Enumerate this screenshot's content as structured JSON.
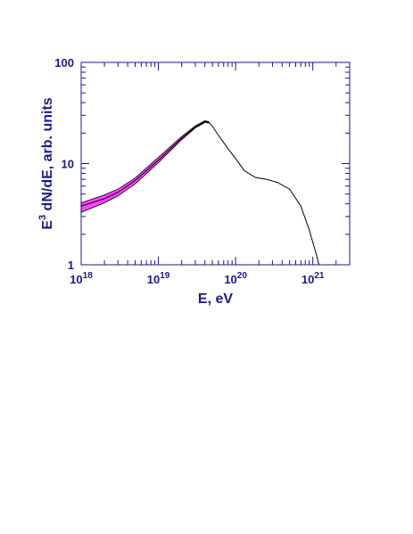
{
  "chart_data": {
    "type": "line",
    "xlabel": "E, eV",
    "ylabel_base": "E",
    "ylabel_exp": "3",
    "ylabel_rest": " dN/dE,  arb. units",
    "x_scale": "log",
    "y_scale": "log",
    "xlim": [
      1e+18,
      3e+21
    ],
    "ylim": [
      1,
      100
    ],
    "x_ticks": [
      {
        "value": 1e+18,
        "base": "10",
        "exp": "18"
      },
      {
        "value": 1e+19,
        "base": "10",
        "exp": "19"
      },
      {
        "value": 1e+20,
        "base": "10",
        "exp": "20"
      },
      {
        "value": 1e+21,
        "base": "10",
        "exp": "21"
      }
    ],
    "y_ticks": [
      {
        "value": 1,
        "label": "1"
      },
      {
        "value": 10,
        "label": "10"
      },
      {
        "value": 100,
        "label": "100"
      }
    ],
    "band": {
      "name": "",
      "color": "#ff44ff",
      "x": [
        1e+18,
        2e+18,
        3e+18,
        5e+18,
        1e+19,
        2e+19,
        3e+19,
        4e+19,
        4.5e+19
      ],
      "upper": [
        4.1,
        4.9,
        5.6,
        7.2,
        11.5,
        18.5,
        23.5,
        26.5,
        26
      ],
      "lower": [
        3.3,
        4.1,
        4.8,
        6.3,
        10.2,
        17.2,
        22.5,
        25.5,
        25.2
      ]
    },
    "curve": {
      "name": "",
      "color": "#000000",
      "x": [
        1e+18,
        2e+18,
        3e+18,
        5e+18,
        1e+19,
        2e+19,
        3e+19,
        4e+19,
        4.5e+19,
        5e+19,
        6e+19,
        8e+19,
        1e+20,
        1.3e+20,
        1.8e+20,
        2.5e+20,
        3.5e+20,
        5e+20,
        7e+20,
        9e+20,
        1.1e+21,
        1.2e+21
      ],
      "y": [
        3.8,
        4.5,
        5.2,
        6.8,
        10.8,
        17.8,
        23,
        26,
        25.5,
        23.5,
        19,
        14,
        11.2,
        8.5,
        7.3,
        7.0,
        6.5,
        5.6,
        3.8,
        2.2,
        1.3,
        1.0
      ]
    },
    "grid": false,
    "legend": "none"
  }
}
